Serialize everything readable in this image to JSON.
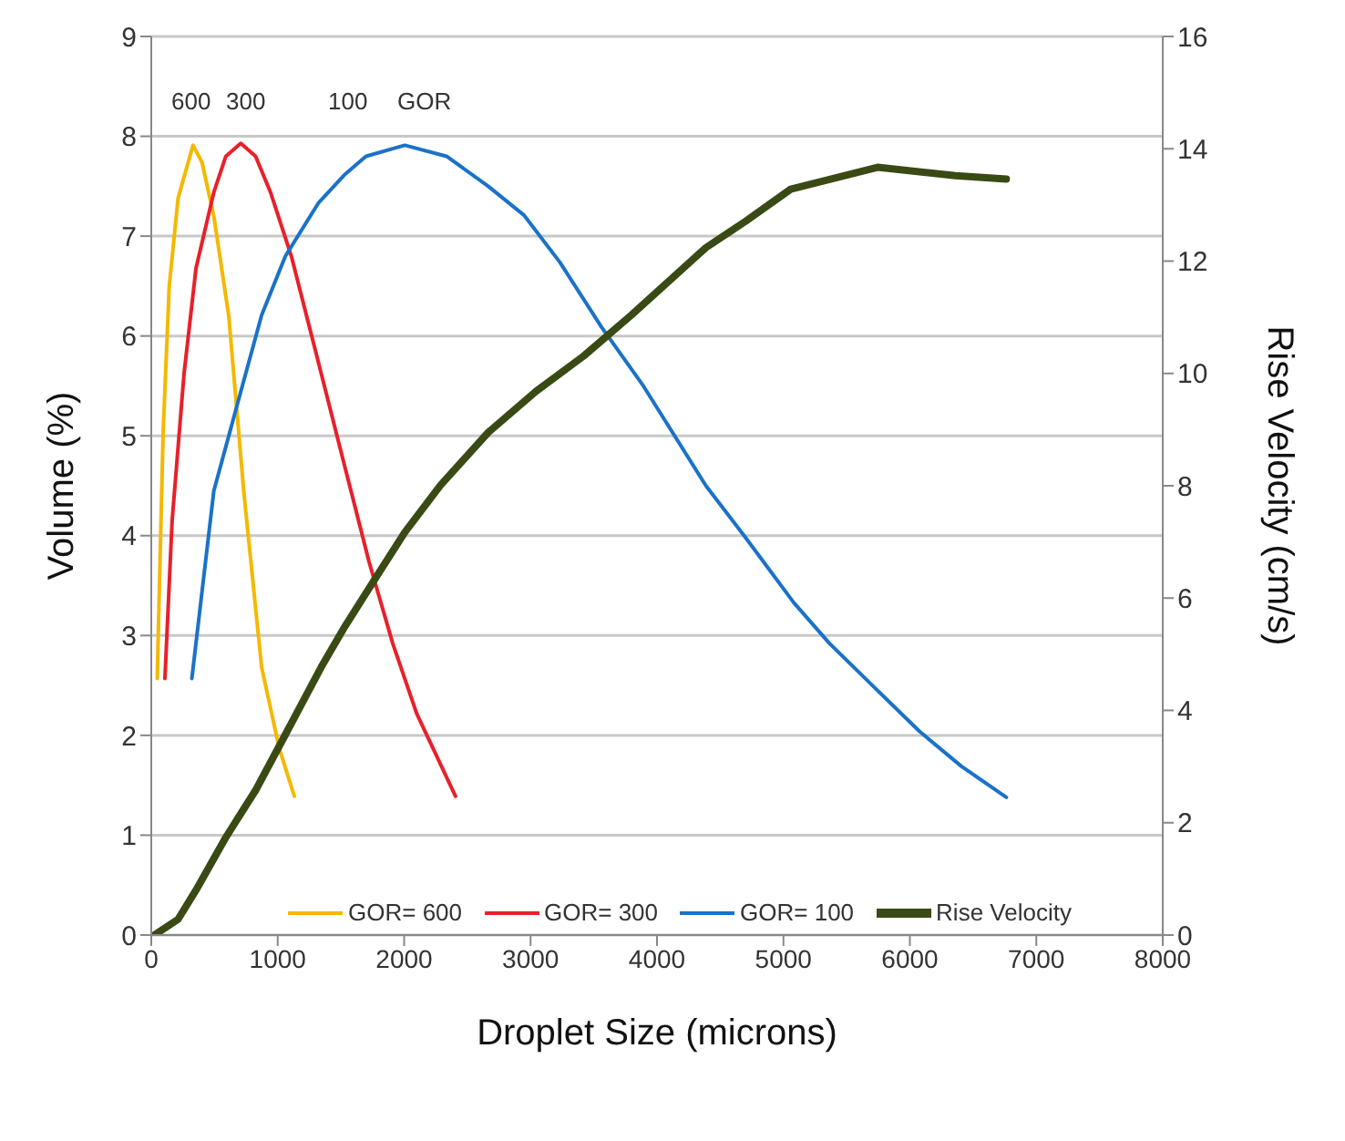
{
  "chart_data": {
    "type": "line",
    "xlabel": "Droplet Size (microns)",
    "ylabel": "Volume  (%)",
    "y2label": "Rise Velocity  (cm/s)",
    "xlim": [
      0,
      8000
    ],
    "xticks": [
      0,
      1000,
      2000,
      3000,
      4000,
      5000,
      6000,
      7000,
      8000
    ],
    "ylim": [
      0,
      9
    ],
    "yticks": [
      0,
      1,
      2,
      3,
      4,
      5,
      6,
      7,
      8,
      9
    ],
    "y2lim": [
      0,
      16
    ],
    "y2ticks": [
      0,
      2,
      4,
      6,
      8,
      10,
      12,
      14,
      16
    ],
    "grid": "y",
    "legend": "bottom",
    "marker": "none",
    "line_style": "solid",
    "annotations": [
      "600",
      "300",
      "100",
      "GOR"
    ],
    "series": [
      {
        "name": "GOR= 600",
        "color": "#f5b800",
        "x": [
          47,
          94,
          142,
          212,
          330,
          401,
          495,
          613,
          731,
          873,
          1014,
          1132
        ],
        "values": [
          2.57,
          5.04,
          6.5,
          7.38,
          7.91,
          7.74,
          7.2,
          6.2,
          4.45,
          2.68,
          1.86,
          1.39
        ]
      },
      {
        "name": "GOR= 300",
        "color": "#e8202a",
        "x": [
          108,
          165,
          259,
          354,
          495,
          590,
          708,
          825,
          943,
          1108,
          1297,
          1533,
          1722,
          1910,
          2099,
          2406
        ],
        "values": [
          2.57,
          4.15,
          5.62,
          6.68,
          7.44,
          7.8,
          7.93,
          7.8,
          7.44,
          6.8,
          5.86,
          4.68,
          3.74,
          2.92,
          2.22,
          1.39
        ]
      },
      {
        "name": "GOR= 100",
        "color": "#1a72c8",
        "x": [
          321,
          495,
          684,
          873,
          1061,
          1321,
          1533,
          1698,
          2005,
          2335,
          2665,
          2948,
          3231,
          3561,
          3892,
          4387,
          4701,
          5081,
          5365,
          5744,
          6076,
          6408,
          6763
        ],
        "values": [
          2.57,
          4.45,
          5.33,
          6.21,
          6.8,
          7.33,
          7.62,
          7.8,
          7.91,
          7.8,
          7.5,
          7.21,
          6.74,
          6.09,
          5.5,
          4.5,
          3.98,
          3.33,
          2.92,
          2.45,
          2.04,
          1.69,
          1.38
        ]
      },
      {
        "name": "Rise Velocity",
        "color": "#3a4a14",
        "axis": "y2",
        "x": [
          24,
          212,
          354,
          590,
          826,
          1061,
          1344,
          1533,
          1769,
          2005,
          2288,
          2665,
          3042,
          3420,
          3797,
          4387,
          4701,
          5057,
          5744,
          6360,
          6763
        ],
        "values": [
          0,
          0.28,
          0.8,
          1.74,
          2.58,
          3.57,
          4.77,
          5.5,
          6.34,
          7.17,
          8.01,
          8.95,
          9.68,
          10.31,
          11.04,
          12.24,
          12.71,
          13.28,
          13.67,
          13.52,
          13.46
        ]
      }
    ]
  }
}
